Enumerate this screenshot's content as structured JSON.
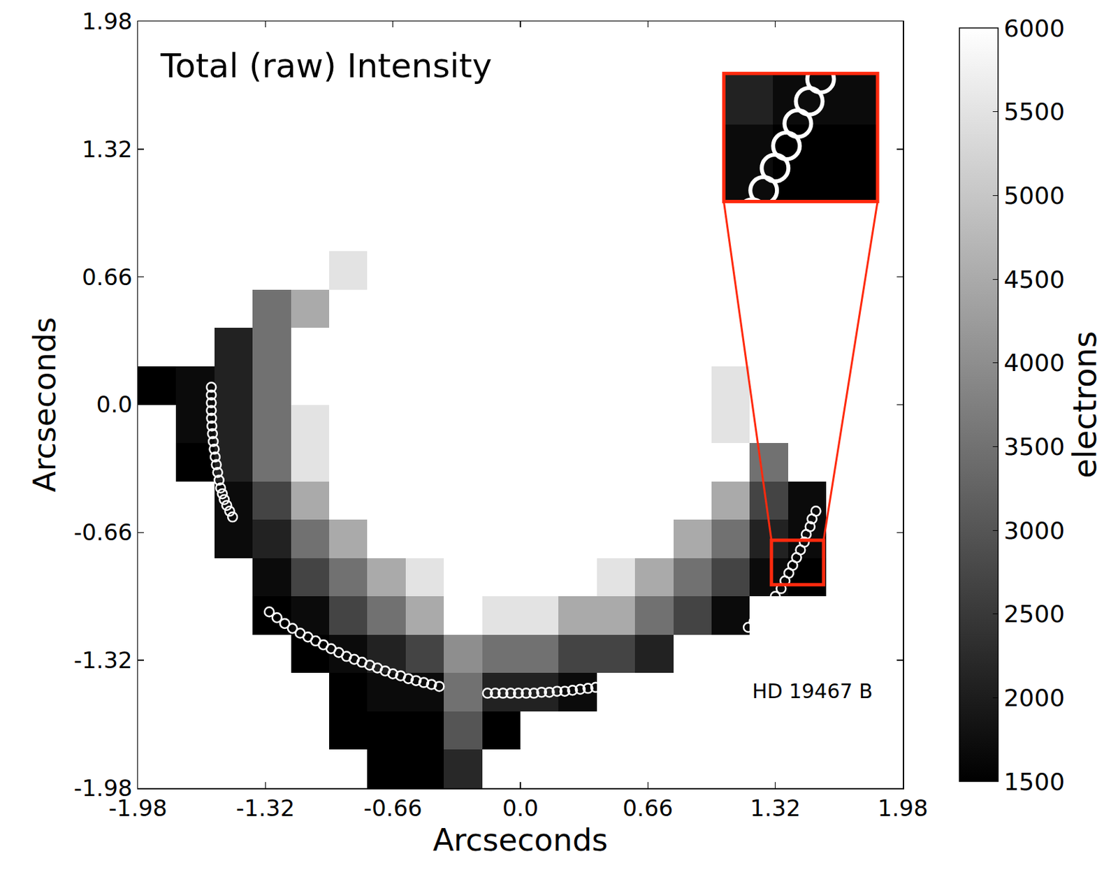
{
  "chart_data": {
    "type": "heatmap",
    "title": "Total (raw) Intensity",
    "x_label": "Arcseconds",
    "y_label": "Arcseconds",
    "annotation": "HD 19467 B",
    "xlim": [
      -1.98,
      1.98
    ],
    "ylim": [
      -1.98,
      1.98
    ],
    "xticks": [
      -1.98,
      -1.32,
      -0.66,
      {
        "value": 0,
        "label": "0.0"
      },
      0.66,
      1.32,
      1.98
    ],
    "yticks": [
      -1.98,
      -1.32,
      -0.66,
      {
        "value": 0,
        "label": "0.0"
      },
      0.66,
      1.32,
      1.98
    ],
    "cells": {
      "x": [
        -1.881,
        -1.683,
        -1.485,
        -1.287,
        -1.089,
        -0.891,
        -0.693,
        -0.495,
        -0.297,
        -0.099,
        0.099,
        0.297,
        0.495,
        0.693,
        0.891,
        1.089,
        1.287,
        1.485,
        1.683,
        1.881
      ],
      "y": [
        -1.881,
        -1.683,
        -1.485,
        -1.287,
        -1.089,
        -0.891,
        -0.693,
        -0.495,
        -0.297,
        -0.099,
        0.099,
        0.297,
        0.495,
        0.693,
        0.891,
        1.089,
        1.287,
        1.485,
        1.683,
        1.881
      ],
      "z": [
        [
          null,
          null,
          null,
          null,
          null,
          null,
          1500,
          1500,
          2200,
          null,
          null,
          null,
          null,
          null,
          null,
          null,
          null,
          null,
          null,
          null
        ],
        [
          null,
          null,
          null,
          null,
          null,
          1500,
          1500,
          1500,
          3000,
          1500,
          null,
          null,
          null,
          null,
          null,
          null,
          null,
          null,
          null,
          null
        ],
        [
          null,
          null,
          null,
          null,
          null,
          1500,
          1700,
          1700,
          3500,
          2100,
          2100,
          1700,
          null,
          null,
          null,
          null,
          null,
          null,
          null,
          null
        ],
        [
          null,
          null,
          null,
          null,
          1500,
          1700,
          2100,
          2700,
          4000,
          3500,
          3500,
          2700,
          2700,
          2100,
          null,
          null,
          null,
          null,
          null,
          null
        ],
        [
          null,
          null,
          null,
          1500,
          1700,
          2700,
          3500,
          4500,
          6500,
          5500,
          5500,
          4500,
          4500,
          3500,
          2700,
          1700,
          null,
          null,
          null,
          null
        ],
        [
          null,
          null,
          null,
          1700,
          2700,
          3500,
          4500,
          5500,
          6500,
          6500,
          6500,
          6500,
          5500,
          4500,
          3500,
          2700,
          1700,
          1500,
          null,
          null
        ],
        [
          null,
          null,
          1700,
          2100,
          3500,
          4500,
          6500,
          6500,
          6500,
          6500,
          6500,
          6500,
          6500,
          6500,
          4500,
          3500,
          2100,
          1700,
          null,
          null
        ],
        [
          null,
          null,
          1700,
          2700,
          4500,
          6500,
          6500,
          6500,
          6500,
          6500,
          6500,
          6500,
          6500,
          6500,
          6500,
          4500,
          2700,
          1700,
          null,
          null
        ],
        [
          null,
          1500,
          2100,
          3500,
          5500,
          6500,
          6500,
          6500,
          6500,
          6500,
          6500,
          6500,
          6500,
          6500,
          6500,
          6500,
          3500,
          null,
          null,
          null
        ],
        [
          null,
          1700,
          2100,
          3500,
          5500,
          6500,
          6500,
          6500,
          6500,
          6500,
          6500,
          6500,
          6500,
          6500,
          6500,
          5500,
          null,
          null,
          null,
          null
        ],
        [
          1500,
          1700,
          2100,
          3500,
          6500,
          6500,
          6500,
          6500,
          6500,
          6500,
          6500,
          6500,
          6500,
          6500,
          6500,
          5500,
          null,
          null,
          null,
          null
        ],
        [
          null,
          null,
          2100,
          3500,
          6500,
          6500,
          6500,
          6500,
          6500,
          6500,
          6500,
          6500,
          6500,
          6500,
          6500,
          null,
          null,
          null,
          null,
          null
        ],
        [
          null,
          null,
          null,
          3500,
          4500,
          6500,
          6500,
          6500,
          6500,
          6500,
          6500,
          6500,
          6500,
          6500,
          6500,
          null,
          null,
          null,
          null,
          null
        ],
        [
          null,
          null,
          null,
          null,
          null,
          5500,
          6500,
          6500,
          6500,
          6500,
          6500,
          6500,
          6500,
          6500,
          null,
          null,
          null,
          null,
          null,
          null
        ],
        [
          null,
          null,
          null,
          null,
          null,
          null,
          null,
          6500,
          6500,
          6500,
          6500,
          6500,
          6500,
          null,
          null,
          null,
          null,
          null,
          null,
          null
        ],
        [
          null,
          null,
          null,
          null,
          null,
          null,
          null,
          null,
          null,
          6500,
          6500,
          6500,
          6500,
          null,
          null,
          null,
          null,
          null,
          null,
          null
        ],
        [
          null,
          null,
          null,
          null,
          null,
          null,
          null,
          null,
          null,
          null,
          6500,
          6500,
          null,
          null,
          null,
          null,
          null,
          null,
          null,
          null
        ],
        [
          null,
          null,
          null,
          null,
          null,
          null,
          null,
          null,
          null,
          null,
          null,
          null,
          null,
          null,
          null,
          null,
          null,
          null,
          null,
          null
        ],
        [
          null,
          null,
          null,
          null,
          null,
          null,
          null,
          null,
          null,
          null,
          null,
          null,
          null,
          null,
          null,
          null,
          null,
          null,
          null,
          null
        ],
        [
          null,
          null,
          null,
          null,
          null,
          null,
          null,
          null,
          null,
          null,
          null,
          null,
          null,
          null,
          null,
          null,
          null,
          null,
          null,
          null
        ]
      ]
    },
    "colorbar": {
      "label": "electrons",
      "range": [
        1500,
        6000
      ],
      "ticks": [
        1500,
        2000,
        2500,
        3000,
        3500,
        4000,
        4500,
        5000,
        5500,
        6000
      ]
    },
    "marker": "circle-open",
    "color": "#ffffff",
    "circles": [
      {
        "x": [
          -1.6,
          -1.6,
          -1.6,
          -1.6,
          -1.599,
          -1.597,
          -1.594,
          -1.59,
          -1.585,
          -1.58,
          -1.574,
          -1.567,
          -1.56,
          -1.552,
          -1.543,
          -1.533,
          -1.52,
          -1.505,
          -1.49
        ],
        "y": [
          0.09,
          0.05,
          0.01,
          -0.03,
          -0.07,
          -0.11,
          -0.15,
          -0.19,
          -0.23,
          -0.27,
          -0.31,
          -0.35,
          -0.39,
          -0.43,
          -0.46,
          -0.49,
          -0.52,
          -0.55,
          -0.58
        ]
      },
      {
        "x": [
          -1.3,
          -1.26,
          -1.22,
          -1.18,
          -1.14,
          -1.1,
          -1.06,
          -1.02,
          -0.98,
          -0.94,
          -0.9,
          -0.86,
          -0.82,
          -0.78,
          -0.74,
          -0.7,
          -0.66,
          -0.62,
          -0.58,
          -0.54,
          -0.5,
          -0.46,
          -0.42
        ],
        "y": [
          -1.07,
          -1.1,
          -1.13,
          -1.155,
          -1.18,
          -1.2,
          -1.22,
          -1.24,
          -1.26,
          -1.28,
          -1.3,
          -1.315,
          -1.33,
          -1.345,
          -1.36,
          -1.375,
          -1.39,
          -1.4,
          -1.415,
          -1.425,
          -1.435,
          -1.445,
          -1.455
        ]
      },
      {
        "x": [
          -0.17,
          -0.13,
          -0.09,
          -0.05,
          -0.01,
          0.03,
          0.07,
          0.11,
          0.15,
          0.19,
          0.23,
          0.27,
          0.31,
          0.35,
          0.39,
          0.43,
          0.47
        ],
        "y": [
          -1.49,
          -1.49,
          -1.49,
          -1.49,
          -1.49,
          -1.49,
          -1.49,
          -1.485,
          -1.485,
          -1.48,
          -1.48,
          -1.475,
          -1.47,
          -1.465,
          -1.46,
          -1.455,
          -1.45
        ]
      },
      {
        "x": [
          1.18,
          1.21,
          1.24,
          1.27,
          1.3,
          1.32,
          1.35,
          1.37,
          1.39,
          1.41,
          1.43,
          1.45,
          1.47,
          1.48,
          1.5,
          1.51,
          1.53
        ],
        "y": [
          -1.15,
          -1.12,
          -1.09,
          -1.06,
          -1.03,
          -0.99,
          -0.95,
          -0.91,
          -0.87,
          -0.83,
          -0.79,
          -0.75,
          -0.71,
          -0.67,
          -0.63,
          -0.59,
          -0.55
        ]
      }
    ],
    "zoom_box": {
      "x": [
        1.3,
        1.57
      ],
      "y": [
        -0.93,
        -0.7
      ]
    }
  }
}
